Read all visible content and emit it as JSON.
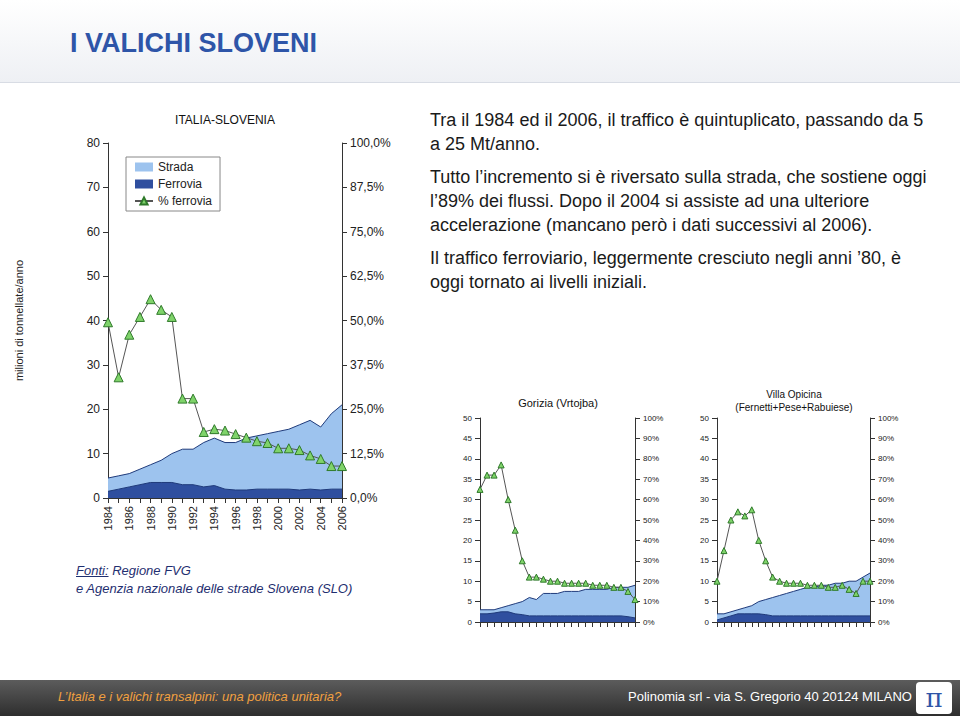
{
  "page": {
    "title": "I VALICHI SLOVENI",
    "paragraphs": [
      "Tra il 1984 ed il 2006, il traffico è quintuplicato, passando da 5 a 25 Mt/anno.",
      "Tutto l’incremento si è riversato sulla strada, che sostiene oggi l’89% dei flussi. Dopo il 2004 si assiste ad una ulteriore accelerazione (mancano però i dati successivi al 2006).",
      "Il traffico ferroviario, leggermente cresciuto negli anni ’80, è oggi tornato ai livelli iniziali."
    ],
    "source_label": "Fonti:",
    "source_lines": [
      "Regione FVG",
      "e Agenzia nazionale delle strade Slovena (SLO)"
    ],
    "footer_left": "L’Italia e i valichi transalpini: una politica unitaria?",
    "footer_right": "Polinomia srl - via S. Gregorio 40   20124 MILANO",
    "logo": "π"
  },
  "chart_data": [
    {
      "type": "line",
      "title": "ITALIA-SLOVENIA",
      "y_label": "milioni di tonnellate/anno",
      "categories": [
        "1984",
        null,
        "1986",
        null,
        "1988",
        null,
        "1990",
        null,
        "1992",
        null,
        "1994",
        null,
        "1996",
        null,
        "1998",
        null,
        "2000",
        null,
        "2002",
        null,
        "2004",
        null,
        "2006"
      ],
      "series": [
        {
          "name": "Strada",
          "type": "area",
          "color": "#9dc3ee",
          "values": [
            4.5,
            5,
            5.5,
            6.5,
            7.5,
            8.5,
            10,
            11,
            11,
            12.5,
            13.5,
            12.5,
            12.5,
            13.5,
            14,
            14.5,
            15,
            15.5,
            16.5,
            17.5,
            16,
            19,
            21
          ]
        },
        {
          "name": "Ferrovia",
          "type": "area",
          "color": "#2f4f9f",
          "values": [
            1.5,
            2,
            2.5,
            3,
            3.5,
            3.5,
            3.5,
            3,
            3,
            2.5,
            2.8,
            2,
            1.8,
            1.8,
            2,
            2,
            2,
            2,
            1.8,
            2,
            1.8,
            2,
            2
          ]
        },
        {
          "name": "% ferrovia",
          "type": "line",
          "axis": "y2",
          "marker": "triangle",
          "color": "#7fd36a",
          "values": [
            49.5,
            34,
            46,
            51,
            56,
            53,
            51,
            28,
            28,
            18.6,
            19.4,
            19,
            18,
            17,
            16,
            15.5,
            14,
            14,
            13.5,
            12,
            11,
            9,
            9
          ]
        }
      ],
      "ylim": [
        0,
        80
      ],
      "yticks": [
        0,
        10,
        20,
        30,
        40,
        50,
        60,
        70,
        80
      ],
      "y2lim": [
        0,
        100
      ],
      "y2ticks": [
        {
          "value": 0,
          "label": "0,0%"
        },
        {
          "value": 12.5,
          "label": "12,5%"
        },
        {
          "value": 25,
          "label": "25,0%"
        },
        {
          "value": 37.5,
          "label": "37,5%"
        },
        {
          "value": 50,
          "label": "50,0%"
        },
        {
          "value": 62.5,
          "label": "62,5%"
        },
        {
          "value": 75,
          "label": "75,0%"
        },
        {
          "value": 87.5,
          "label": "87,5%"
        },
        {
          "value": 100,
          "label": "100,0%"
        }
      ],
      "legend": "top-left",
      "grid": false
    },
    {
      "type": "line",
      "title": "Gorizia (Vrtojba)",
      "categories": [
        null,
        null,
        null,
        null,
        null,
        null,
        null,
        null,
        null,
        null,
        null,
        null,
        null,
        null,
        null,
        null,
        null,
        null,
        null,
        null,
        null,
        null,
        null
      ],
      "series": [
        {
          "name": "Strada",
          "type": "area",
          "color": "#9dc3ee",
          "values": [
            3,
            3,
            3,
            3.5,
            4,
            4.5,
            5,
            6,
            5.5,
            7,
            7,
            7,
            7.5,
            7.5,
            7.5,
            8,
            8,
            8,
            8,
            8.5,
            8.5,
            8.5,
            9
          ]
        },
        {
          "name": "Ferrovia",
          "type": "area",
          "color": "#2f4f9f",
          "values": [
            2,
            2,
            2.2,
            2.5,
            2.5,
            2,
            1.8,
            1.5,
            1.5,
            1.5,
            1.5,
            1.5,
            1.5,
            1.5,
            1.5,
            1.5,
            1.5,
            1.5,
            1.5,
            1.5,
            1.5,
            1.3,
            1
          ]
        },
        {
          "name": "% ferrovia",
          "type": "line",
          "axis": "y2",
          "marker": "triangle",
          "color": "#7fd36a",
          "values": [
            65,
            72,
            72,
            77,
            60,
            45,
            30,
            22,
            22,
            21,
            20,
            20,
            19,
            19,
            19,
            19,
            18,
            18,
            18,
            17,
            17,
            15,
            11
          ]
        }
      ],
      "ylim": [
        0,
        50
      ],
      "yticks": [
        0,
        5,
        10,
        15,
        20,
        25,
        30,
        35,
        40,
        45,
        50
      ],
      "y2lim": [
        0,
        100
      ],
      "y2ticks": [
        {
          "value": 0,
          "label": "0%"
        },
        {
          "value": 10,
          "label": "10%"
        },
        {
          "value": 20,
          "label": "20%"
        },
        {
          "value": 30,
          "label": "30%"
        },
        {
          "value": 40,
          "label": "40%"
        },
        {
          "value": 50,
          "label": "50%"
        },
        {
          "value": 60,
          "label": "60%"
        },
        {
          "value": 70,
          "label": "70%"
        },
        {
          "value": 80,
          "label": "80%"
        },
        {
          "value": 90,
          "label": "90%"
        },
        {
          "value": 100,
          "label": "100%"
        }
      ],
      "grid": false
    },
    {
      "type": "line",
      "title": "Villa Opicina\n(Fernetti+Pese+Rabuiese)",
      "categories": [
        null,
        null,
        null,
        null,
        null,
        null,
        null,
        null,
        null,
        null,
        null,
        null,
        null,
        null,
        null,
        null,
        null,
        null,
        null,
        null,
        null,
        null,
        null
      ],
      "series": [
        {
          "name": "Strada",
          "type": "area",
          "color": "#9dc3ee",
          "values": [
            2,
            2,
            2.5,
            3,
            3.5,
            4,
            5,
            5.5,
            6,
            6.5,
            7,
            7.5,
            8,
            8.5,
            8.5,
            9,
            9,
            9.5,
            9.5,
            10,
            10,
            11,
            12
          ]
        },
        {
          "name": "Ferrovia",
          "type": "area",
          "color": "#2f4f9f",
          "values": [
            0.5,
            1,
            1.5,
            2,
            2,
            2,
            2,
            1.8,
            1.5,
            1.5,
            1.5,
            1.5,
            1.5,
            1.5,
            1.5,
            1.5,
            1.5,
            1.5,
            1.5,
            1.5,
            1.5,
            1.5,
            1.5
          ]
        },
        {
          "name": "% ferrovia",
          "type": "line",
          "axis": "y2",
          "marker": "triangle",
          "color": "#7fd36a",
          "values": [
            20,
            35,
            50,
            54,
            52,
            55,
            40,
            30,
            22,
            20,
            19,
            19,
            19,
            18,
            18,
            18,
            17,
            17,
            18,
            16,
            14,
            20,
            20
          ]
        }
      ],
      "ylim": [
        0,
        50
      ],
      "yticks": [
        0,
        5,
        10,
        15,
        20,
        25,
        30,
        35,
        40,
        45,
        50
      ],
      "y2lim": [
        0,
        100
      ],
      "y2ticks": [
        {
          "value": 0,
          "label": "0%"
        },
        {
          "value": 10,
          "label": "10%"
        },
        {
          "value": 20,
          "label": "20%"
        },
        {
          "value": 30,
          "label": "30%"
        },
        {
          "value": 40,
          "label": "40%"
        },
        {
          "value": 50,
          "label": "50%"
        },
        {
          "value": 60,
          "label": "60%"
        },
        {
          "value": 70,
          "label": "70%"
        },
        {
          "value": 80,
          "label": "80%"
        },
        {
          "value": 90,
          "label": "90%"
        },
        {
          "value": 100,
          "label": "100%"
        }
      ],
      "grid": false
    }
  ]
}
